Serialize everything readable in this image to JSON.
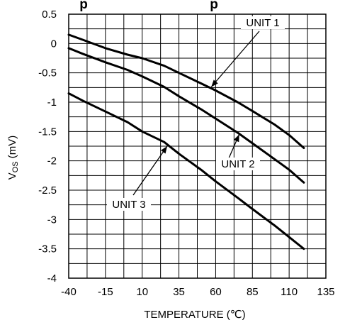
{
  "chart_data": {
    "type": "line",
    "title_fragment": "p",
    "title_fragment_2": "p",
    "xlabel": "TEMPERATURE (℃)",
    "ylabel_main": "V",
    "ylabel_sub": "OS",
    "ylabel_unit": " (mV)",
    "xlim": [
      -40,
      135
    ],
    "ylim": [
      -4,
      0.5
    ],
    "x_ticks": [
      -40,
      -15,
      10,
      35,
      60,
      85,
      110,
      135
    ],
    "x_tick_labels": [
      "-40",
      "-15",
      "10",
      "35",
      "60",
      "85",
      "110",
      "135"
    ],
    "y_ticks": [
      0.5,
      0,
      -0.5,
      -1,
      -1.5,
      -2,
      -2.5,
      -3,
      -3.5,
      -4
    ],
    "y_tick_labels": [
      "0.5",
      "0",
      "-0.5",
      "-1",
      "-1.5",
      "-2",
      "-2.5",
      "-3",
      "-3.5",
      "-4"
    ],
    "grid": true,
    "series": [
      {
        "name": "UNIT 1",
        "x": [
          -40,
          -30,
          -15,
          0,
          10,
          25,
          35,
          50,
          60,
          75,
          85,
          100,
          110,
          120
        ],
        "y": [
          0.15,
          0.06,
          -0.08,
          -0.19,
          -0.25,
          -0.38,
          -0.5,
          -0.68,
          -0.8,
          -1.0,
          -1.15,
          -1.38,
          -1.56,
          -1.78
        ]
      },
      {
        "name": "UNIT 2",
        "x": [
          -40,
          -30,
          -15,
          0,
          10,
          25,
          35,
          50,
          60,
          75,
          85,
          100,
          110,
          120
        ],
        "y": [
          -0.08,
          -0.18,
          -0.32,
          -0.45,
          -0.56,
          -0.74,
          -0.9,
          -1.12,
          -1.28,
          -1.52,
          -1.7,
          -1.97,
          -2.15,
          -2.37
        ]
      },
      {
        "name": "UNIT 3",
        "x": [
          -40,
          -30,
          -15,
          0,
          10,
          25,
          35,
          50,
          60,
          75,
          85,
          100,
          110,
          120
        ],
        "y": [
          -0.85,
          -0.98,
          -1.16,
          -1.34,
          -1.5,
          -1.68,
          -1.88,
          -2.15,
          -2.35,
          -2.63,
          -2.82,
          -3.1,
          -3.3,
          -3.5
        ]
      }
    ],
    "annotations": [
      {
        "text": "UNIT 1",
        "target_x": 57,
        "target_y": -0.74
      },
      {
        "text": "UNIT 2",
        "target_x": 76,
        "target_y": -1.55
      },
      {
        "text": "UNIT 3",
        "target_x": 27,
        "target_y": -1.75
      }
    ]
  }
}
